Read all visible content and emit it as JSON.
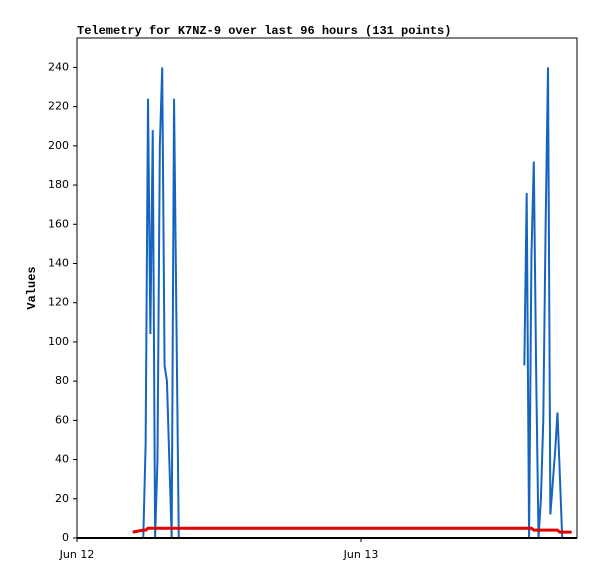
{
  "chart_data": {
    "type": "line",
    "title": "Telemetry for K7NZ-9 over last 96 hours (131 points)",
    "y_label": "Values",
    "x": [
      4.7,
      5.6,
      5.8,
      6.0,
      6.2,
      6.4,
      6.6,
      6.8,
      7.0,
      7.2,
      7.4,
      7.6,
      7.8,
      8.0,
      8.2,
      8.4,
      8.6,
      12,
      18,
      24,
      30,
      36,
      37.8,
      38.0,
      38.2,
      38.4,
      38.6,
      38.8,
      39.0,
      39.2,
      39.4,
      39.6,
      39.8,
      40.0,
      40.2,
      40.4,
      40.6,
      40.8,
      41.0,
      41.8
    ],
    "series": [
      {
        "color": "#1565c0",
        "values": [
          null,
          0,
          48,
          224,
          104,
          208,
          0,
          40,
          200,
          240,
          88,
          80,
          40,
          0,
          224,
          112,
          0,
          null,
          null,
          null,
          null,
          null,
          88,
          176,
          0,
          144,
          192,
          84,
          0,
          20,
          60,
          160,
          240,
          12,
          28,
          44,
          64,
          32,
          0,
          null
        ]
      },
      {
        "color": "#e00000",
        "values": [
          3,
          4,
          4,
          5,
          5,
          5,
          5,
          5,
          5,
          5,
          5,
          5,
          5,
          5,
          5,
          5,
          5,
          5,
          5,
          5,
          5,
          5,
          5,
          5,
          5,
          5,
          4,
          4,
          4,
          4,
          4,
          4,
          4,
          4,
          4,
          4,
          4,
          3,
          3,
          3
        ]
      }
    ],
    "xlim": [
      0,
      42.25
    ],
    "xticks": [
      {
        "value": 0,
        "label": "Jun 12"
      },
      {
        "value": 24,
        "label": "Jun 13"
      }
    ],
    "ylim": [
      0,
      255
    ],
    "yticks": [
      0,
      20,
      40,
      60,
      80,
      100,
      120,
      140,
      160,
      180,
      200,
      220,
      240
    ]
  }
}
